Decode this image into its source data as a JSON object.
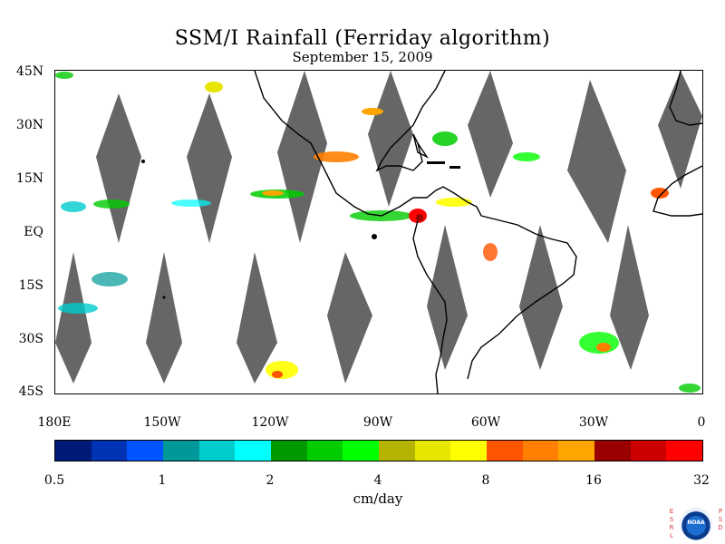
{
  "header": {
    "title": "SSM/I Rainfall (Ferriday algorithm)",
    "date": "September 15, 2009"
  },
  "map": {
    "lat_labels": [
      "45N",
      "30N",
      "15N",
      "EQ",
      "15S",
      "30S",
      "45S"
    ],
    "lon_labels": [
      "180E",
      "150W",
      "120W",
      "90W",
      "60W",
      "30W",
      "0"
    ],
    "no_data_color": "#666666",
    "coastline_color": "#000000"
  },
  "colorbar": {
    "units": "cm/day",
    "tick_labels": [
      "0.5",
      "1",
      "2",
      "4",
      "8",
      "16",
      "32"
    ],
    "colors": [
      "#001a7a",
      "#0033b3",
      "#0055ff",
      "#009999",
      "#00cccc",
      "#00ffff",
      "#009900",
      "#00cc00",
      "#00ff00",
      "#b3b300",
      "#e6e600",
      "#ffff00",
      "#ff5500",
      "#ff7f00",
      "#ffa500",
      "#990000",
      "#cc0000",
      "#ff0000"
    ]
  },
  "logo": {
    "name": "NOAA",
    "left_letters": "ESRL",
    "right_letters": "PSD"
  }
}
